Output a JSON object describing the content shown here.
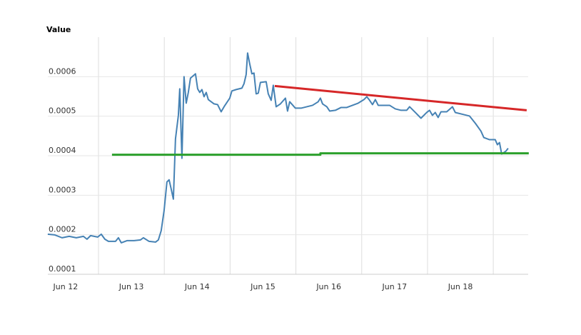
{
  "chart_data": {
    "type": "line",
    "title": "Value",
    "xlim": [
      11.73,
      19.03
    ],
    "xticks": [
      {
        "value": 12,
        "label": "Jun 12"
      },
      {
        "value": 13,
        "label": "Jun 13"
      },
      {
        "value": 14,
        "label": "Jun 14"
      },
      {
        "value": 15,
        "label": "Jun 15"
      },
      {
        "value": 16,
        "label": "Jun 16"
      },
      {
        "value": 17,
        "label": "Jun 17"
      },
      {
        "value": 18,
        "label": "Jun 18"
      }
    ],
    "xgrid": [
      12.5,
      13.5,
      14.5,
      15.5,
      16.5,
      17.5,
      18.5
    ],
    "ylim": [
      0.0001,
      0.0007
    ],
    "yticks": [
      0.0001,
      0.0002,
      0.0003,
      0.0004,
      0.0005,
      0.0006
    ],
    "grid": true,
    "series": [
      {
        "color": "#4682b4",
        "x": [
          11.729,
          11.837,
          11.946,
          12.054,
          12.163,
          12.271,
          12.325,
          12.38,
          12.488,
          12.542,
          12.597,
          12.651,
          12.759,
          12.803,
          12.846,
          12.933,
          13.041,
          13.139,
          13.182,
          13.269,
          13.367,
          13.41,
          13.453,
          13.497,
          13.54,
          13.573,
          13.605,
          13.638,
          13.67,
          13.714,
          13.735,
          13.768,
          13.8,
          13.833,
          13.865,
          13.898,
          13.974,
          14.007,
          14.039,
          14.072,
          14.104,
          14.137,
          14.169,
          14.256,
          14.31,
          14.364,
          14.408,
          14.495,
          14.527,
          14.592,
          14.679,
          14.711,
          14.744,
          14.766,
          14.798,
          14.831,
          14.863,
          14.896,
          14.928,
          14.961,
          15.048,
          15.08,
          15.124,
          15.156,
          15.2,
          15.265,
          15.341,
          15.373,
          15.406,
          15.492,
          15.579,
          15.666,
          15.753,
          15.839,
          15.872,
          15.905,
          15.97,
          16.013,
          16.1,
          16.187,
          16.273,
          16.36,
          16.447,
          16.534,
          16.577,
          16.62,
          16.664,
          16.707,
          16.751,
          16.837,
          16.924,
          17.011,
          17.098,
          17.184,
          17.228,
          17.315,
          17.401,
          17.488,
          17.531,
          17.575,
          17.618,
          17.662,
          17.705,
          17.792,
          17.879,
          17.922,
          18.052,
          18.139,
          18.226,
          18.312,
          18.356,
          18.443,
          18.529,
          18.562,
          18.594,
          18.627,
          18.692,
          18.725
        ],
        "values": [
          0.0002014,
          0.0001996,
          0.0001924,
          0.000196,
          0.0001924,
          0.000196,
          0.0001888,
          0.0001978,
          0.0001942,
          0.0002014,
          0.0001888,
          0.0001833,
          0.0001833,
          0.0001924,
          0.0001797,
          0.0001851,
          0.0001851,
          0.000187,
          0.0001924,
          0.0001833,
          0.0001815,
          0.000187,
          0.0002105,
          0.0002612,
          0.0003337,
          0.0003391,
          0.0003156,
          0.0002902,
          0.0004424,
          0.0005022,
          0.0005692,
          0.0003935,
          0.0006,
          0.000533,
          0.0005601,
          0.0005964,
          0.0006072,
          0.0005692,
          0.0005601,
          0.0005674,
          0.0005493,
          0.0005601,
          0.000542,
          0.0005312,
          0.0005293,
          0.0005112,
          0.0005239,
          0.0005457,
          0.0005638,
          0.0005674,
          0.000571,
          0.0005819,
          0.0006054,
          0.0006598,
          0.0006326,
          0.0006072,
          0.0006091,
          0.0005565,
          0.0005583,
          0.0005855,
          0.0005873,
          0.0005565,
          0.0005402,
          0.0005783,
          0.0005239,
          0.0005312,
          0.0005457,
          0.000513,
          0.0005366,
          0.0005203,
          0.0005203,
          0.0005239,
          0.0005275,
          0.0005366,
          0.0005457,
          0.0005312,
          0.0005239,
          0.000513,
          0.0005149,
          0.0005221,
          0.0005221,
          0.0005275,
          0.000533,
          0.000542,
          0.0005493,
          0.0005402,
          0.0005293,
          0.000542,
          0.0005275,
          0.0005275,
          0.0005275,
          0.0005185,
          0.0005149,
          0.0005149,
          0.0005239,
          0.0005094,
          0.0004949,
          0.0005094,
          0.0005149,
          0.0005022,
          0.0005094,
          0.0004967,
          0.0005112,
          0.0005112,
          0.0005239,
          0.0005094,
          0.000504,
          0.0005004,
          0.0004822,
          0.0004623,
          0.000446,
          0.0004406,
          0.0004406,
          0.0004279,
          0.0004333,
          0.0004043,
          0.0004116,
          0.0004188
        ]
      },
      {
        "color": "#d62728",
        "x": [
          15.178,
          19.007
        ],
        "values": [
          0.0005764,
          0.0005149
        ]
      },
      {
        "color": "#2ca02c",
        "x": [
          12.705,
          15.872,
          15.872,
          19.039
        ],
        "values": [
          0.0004025,
          0.0004025,
          0.0004062,
          0.0004062
        ]
      }
    ]
  }
}
